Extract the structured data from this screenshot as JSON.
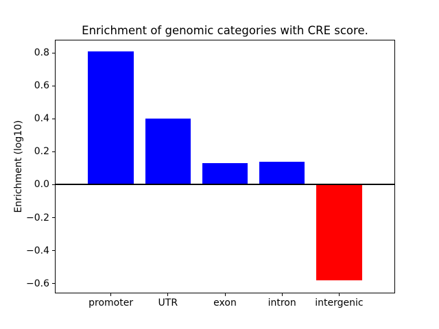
{
  "chart_data": {
    "type": "bar",
    "title": "Enrichment of genomic categories with CRE score.",
    "xlabel": "",
    "ylabel": "Enrichment (log10)",
    "categories": [
      "promoter",
      "UTR",
      "exon",
      "intron",
      "intergenic"
    ],
    "values": [
      0.81,
      0.4,
      0.13,
      0.14,
      -0.58
    ],
    "yticks": [
      0.8,
      0.6,
      0.4,
      0.2,
      0.0,
      -0.2,
      -0.4,
      -0.6
    ],
    "ylim": [
      -0.66,
      0.88
    ],
    "bar_width_fraction": 0.8,
    "positive_color": "#0000ff",
    "negative_color": "#ff0000",
    "zero_line": true,
    "grid": false,
    "legend": null,
    "background_color": "#ffffff",
    "axis_color": "#000000",
    "text_color": "#000000"
  }
}
